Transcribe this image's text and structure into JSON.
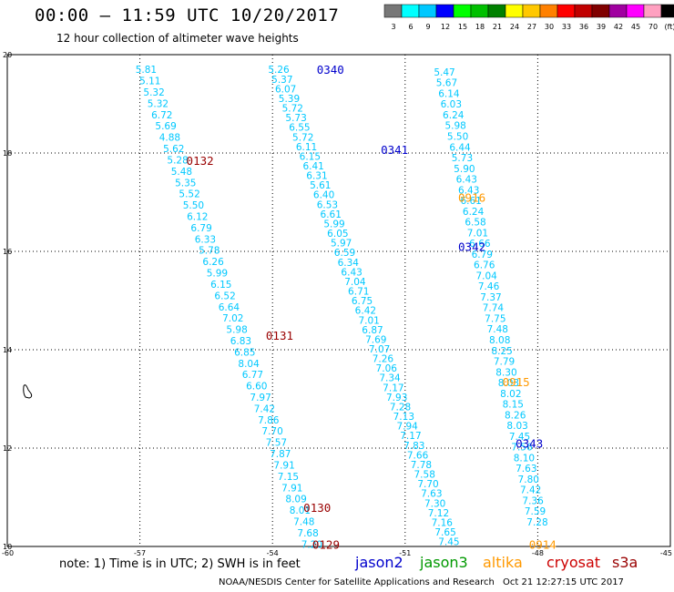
{
  "title": "00:00 – 11:59 UTC 10/20/2017",
  "subtitle": "12 hour collection of altimeter wave heights",
  "colorbar": {
    "labels": [
      "3",
      "6",
      "9",
      "12",
      "15",
      "18",
      "21",
      "24",
      "27",
      "30",
      "33",
      "36",
      "39",
      "42",
      "45",
      "70",
      "(ft)"
    ],
    "colors": [
      "#777777",
      "#00ffff",
      "#00c8ff",
      "#0000ff",
      "#00ff00",
      "#00c000",
      "#008000",
      "#ffff00",
      "#ffc800",
      "#ff8000",
      "#ff0000",
      "#c00000",
      "#800000",
      "#a000a0",
      "#ff00ff",
      "#ffa0c0",
      "#000000"
    ]
  },
  "footer": {
    "note": "note:  1) Time is in UTC;  2) SWH is in feet",
    "credit": "NOAA/NESDIS Center for Satellite Applications and Research",
    "timestamp": "Oct 21 12:27:15 UTC 2017"
  },
  "legend": [
    {
      "name": "jason2",
      "color": "#0000cc"
    },
    {
      "name": "jason3",
      "color": "#009900"
    },
    {
      "name": "altika",
      "color": "#ff9900"
    },
    {
      "name": "cryosat",
      "color": "#cc0000"
    },
    {
      "name": "s3a",
      "color": "#990000"
    }
  ],
  "chart_data": {
    "type": "scatter",
    "xlim": [
      -60,
      -45
    ],
    "ylim": [
      10,
      20
    ],
    "xticks": [
      "-60",
      "-57",
      "-54",
      "-51",
      "-48",
      "-45"
    ],
    "yticks": [
      "10",
      "12",
      "14",
      "16",
      "18",
      "20"
    ],
    "grid": true,
    "label_color": "#00c8ff",
    "tracks": [
      {
        "x0": -57.1,
        "y0": 19.7,
        "x1": -53.35,
        "y1": 10.05,
        "values": [
          "5.81",
          "5.11",
          "5.32",
          "5.32",
          "6.72",
          "5.69",
          "4.88",
          "5.62",
          "5.28",
          "5.48",
          "5.35",
          "5.52",
          "5.50",
          "6.12",
          "6.79",
          "6.33",
          "5.78",
          "6.26",
          "5.99",
          "6.15",
          "6.52",
          "6.64",
          "7.02",
          "5.98",
          "6.83",
          "6.85",
          "8.04",
          "6.77",
          "6.60",
          "7.97",
          "7.42",
          "7.86",
          "7.70",
          "7.57",
          "7.87",
          "7.91",
          "7.15",
          "7.91",
          "8.09",
          "8.01",
          "7.48",
          "7.68",
          "7.20"
        ]
      },
      {
        "x0": -54.1,
        "y0": 19.7,
        "x1": -50.25,
        "y1": 10.1,
        "values": [
          "5.26",
          "5.37",
          "6.07",
          "5.39",
          "5.72",
          "5.73",
          "6.55",
          "5.72",
          "6.11",
          "6.15",
          "6.41",
          "6.31",
          "5.61",
          "6.40",
          "6.53",
          "6.61",
          "5.99",
          "6.05",
          "5.97",
          "6.59",
          "6.34",
          "6.43",
          "7.04",
          "6.71",
          "6.75",
          "6.42",
          "7.01",
          "6.87",
          "7.69",
          "7.07",
          "7.26",
          "7.06",
          "7.34",
          "7.17",
          "7.93",
          "7.28",
          "7.13",
          "7.94",
          "7.17",
          "7.83",
          "7.66",
          "7.78",
          "7.58",
          "7.70",
          "7.63",
          "7.30",
          "7.12",
          "7.16",
          "7.65",
          "7.45"
        ]
      },
      {
        "x0": -50.35,
        "y0": 19.65,
        "x1": -48.25,
        "y1": 10.5,
        "values": [
          "5.47",
          "5.67",
          "6.14",
          "6.03",
          "6.24",
          "5.98",
          "5.50",
          "6.44",
          "5.73",
          "5.90",
          "6.43",
          "6.43",
          "6.61",
          "6.24",
          "6.58",
          "7.01",
          "6.66",
          "6.79",
          "6.76",
          "7.04",
          "7.46",
          "7.37",
          "7.74",
          "7.75",
          "7.48",
          "8.08",
          "8.25",
          "7.79",
          "8.30",
          "8.03",
          "8.02",
          "8.15",
          "8.26",
          "8.03",
          "7.45",
          "7.56",
          "8.10",
          "7.63",
          "7.80",
          "7.42",
          "7.36",
          "7.59",
          "7.28"
        ]
      }
    ],
    "time_labels": [
      {
        "text": "0340",
        "lon": -53.0,
        "lat": 19.7,
        "series": "jason2"
      },
      {
        "text": "0341",
        "lon": -51.55,
        "lat": 18.07,
        "series": "jason2"
      },
      {
        "text": "0342",
        "lon": -49.8,
        "lat": 16.1,
        "series": "jason2"
      },
      {
        "text": "0343",
        "lon": -48.5,
        "lat": 12.1,
        "series": "jason2"
      },
      {
        "text": "0916",
        "lon": -49.8,
        "lat": 17.1,
        "series": "altika"
      },
      {
        "text": "0915",
        "lon": -48.8,
        "lat": 13.35,
        "series": "altika"
      },
      {
        "text": "0914",
        "lon": -48.2,
        "lat": 10.05,
        "series": "altika"
      },
      {
        "text": "0132",
        "lon": -55.95,
        "lat": 17.85,
        "series": "s3a"
      },
      {
        "text": "0131",
        "lon": -54.15,
        "lat": 14.3,
        "series": "s3a"
      },
      {
        "text": "0130",
        "lon": -53.3,
        "lat": 10.8,
        "series": "s3a"
      },
      {
        "text": "0129",
        "lon": -53.1,
        "lat": 10.05,
        "series": "s3a"
      }
    ]
  }
}
